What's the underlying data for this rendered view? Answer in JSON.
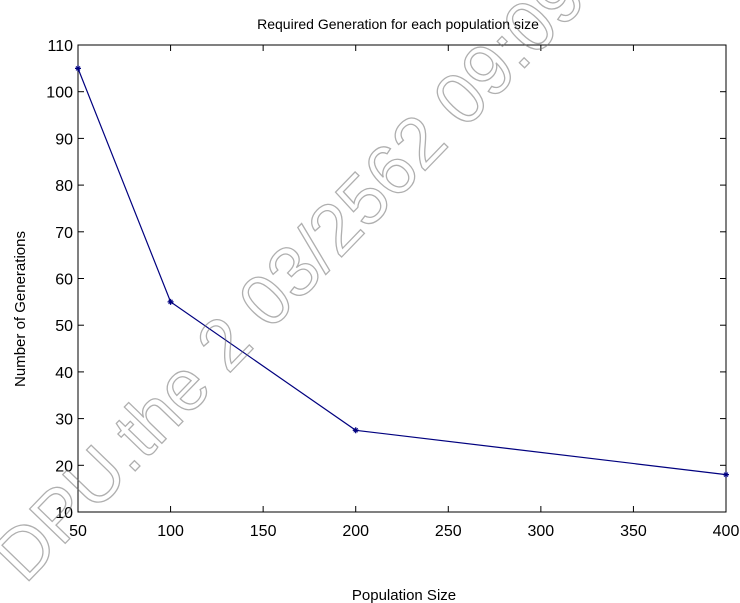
{
  "chart_data": {
    "type": "line",
    "title": "Required Generation for each population size",
    "xlabel": "Population Size",
    "ylabel": "Number of Generations",
    "xlim": [
      50,
      400
    ],
    "ylim": [
      10,
      110
    ],
    "xticks": [
      50,
      100,
      150,
      200,
      250,
      300,
      350,
      400
    ],
    "yticks": [
      10,
      20,
      30,
      40,
      50,
      60,
      70,
      80,
      90,
      100,
      110
    ],
    "grid": false,
    "legend": "none",
    "series": [
      {
        "x": [
          50,
          100,
          200,
          400
        ],
        "y": [
          105,
          55,
          27.5,
          18
        ],
        "color": "#00007f",
        "marker": "*"
      }
    ]
  },
  "watermark": {
    "text": "DPU.the 2 03/2562 09:09:",
    "color": "#6e6e6e"
  }
}
